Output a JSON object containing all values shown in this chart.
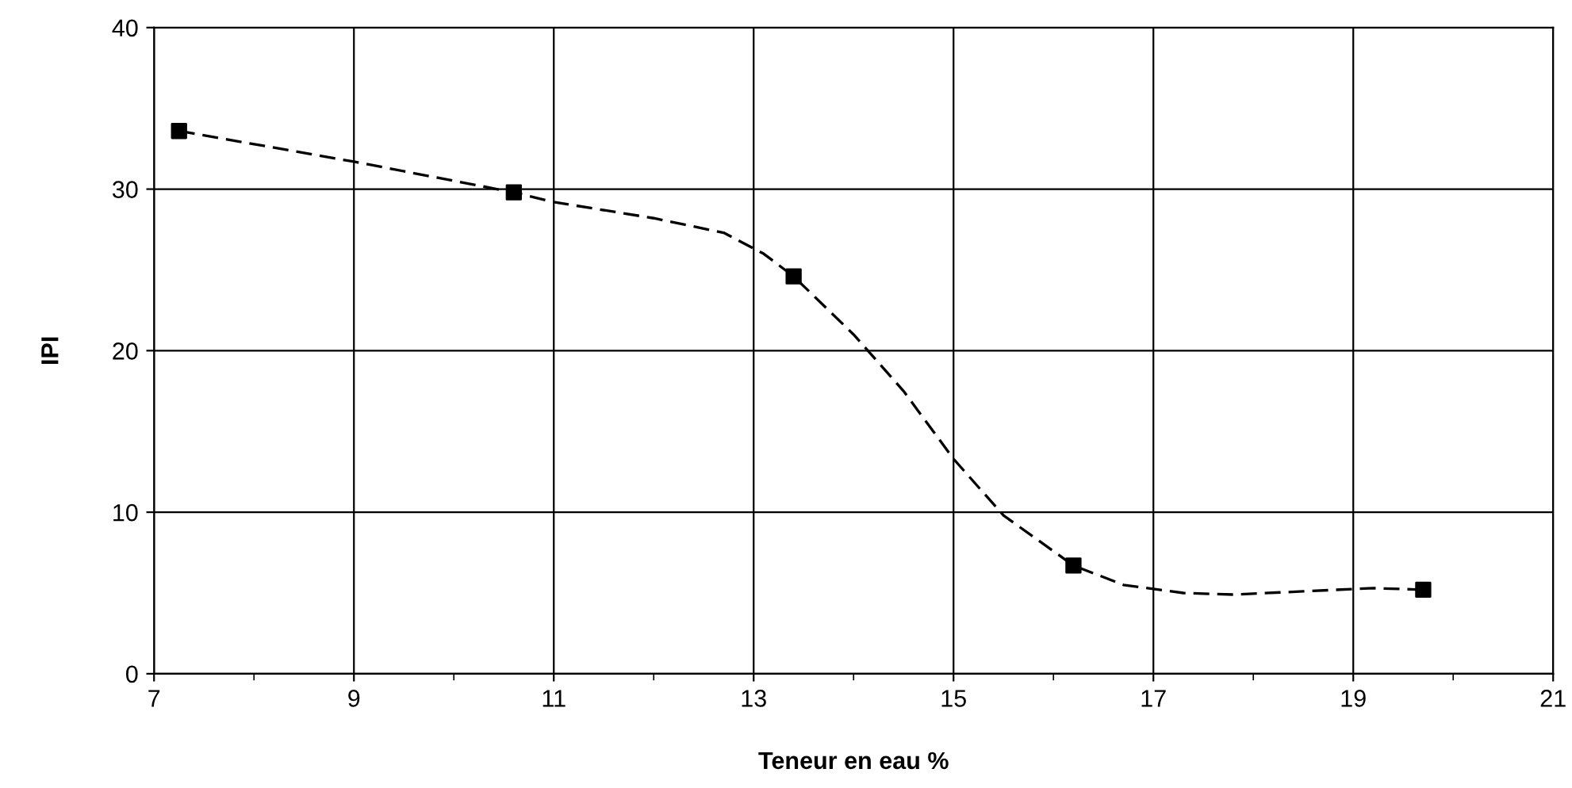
{
  "chart_data": {
    "type": "line",
    "xlabel": "Teneur en eau %",
    "ylabel": "IPI",
    "series": [
      {
        "color": "#000000",
        "line_style": "dashed",
        "marker": "none",
        "x": [
          7.25,
          9,
          10.6,
          11,
          12,
          12.7,
          13.1,
          13.4,
          14,
          14.5,
          15,
          15.5,
          16.2,
          16.7,
          17.3,
          17.8,
          18.5,
          19.2,
          19.7
        ],
        "values": [
          33.6,
          31.7,
          29.8,
          29.2,
          28.2,
          27.3,
          26.0,
          24.6,
          21.0,
          17.5,
          13.3,
          9.8,
          6.7,
          5.5,
          5.0,
          4.9,
          5.1,
          5.3,
          5.2
        ]
      },
      {
        "type": "scatter",
        "color": "#000000",
        "marker": "square",
        "x": [
          7.25,
          10.6,
          13.4,
          16.2,
          19.7
        ],
        "values": [
          33.6,
          29.8,
          24.6,
          6.7,
          5.2
        ]
      }
    ],
    "xlim": [
      7,
      21
    ],
    "xticks": [
      7,
      9,
      11,
      13,
      15,
      17,
      19,
      21
    ],
    "ylim": [
      0,
      40
    ],
    "yticks": [
      0,
      10,
      20,
      30,
      40
    ],
    "grid": true
  }
}
